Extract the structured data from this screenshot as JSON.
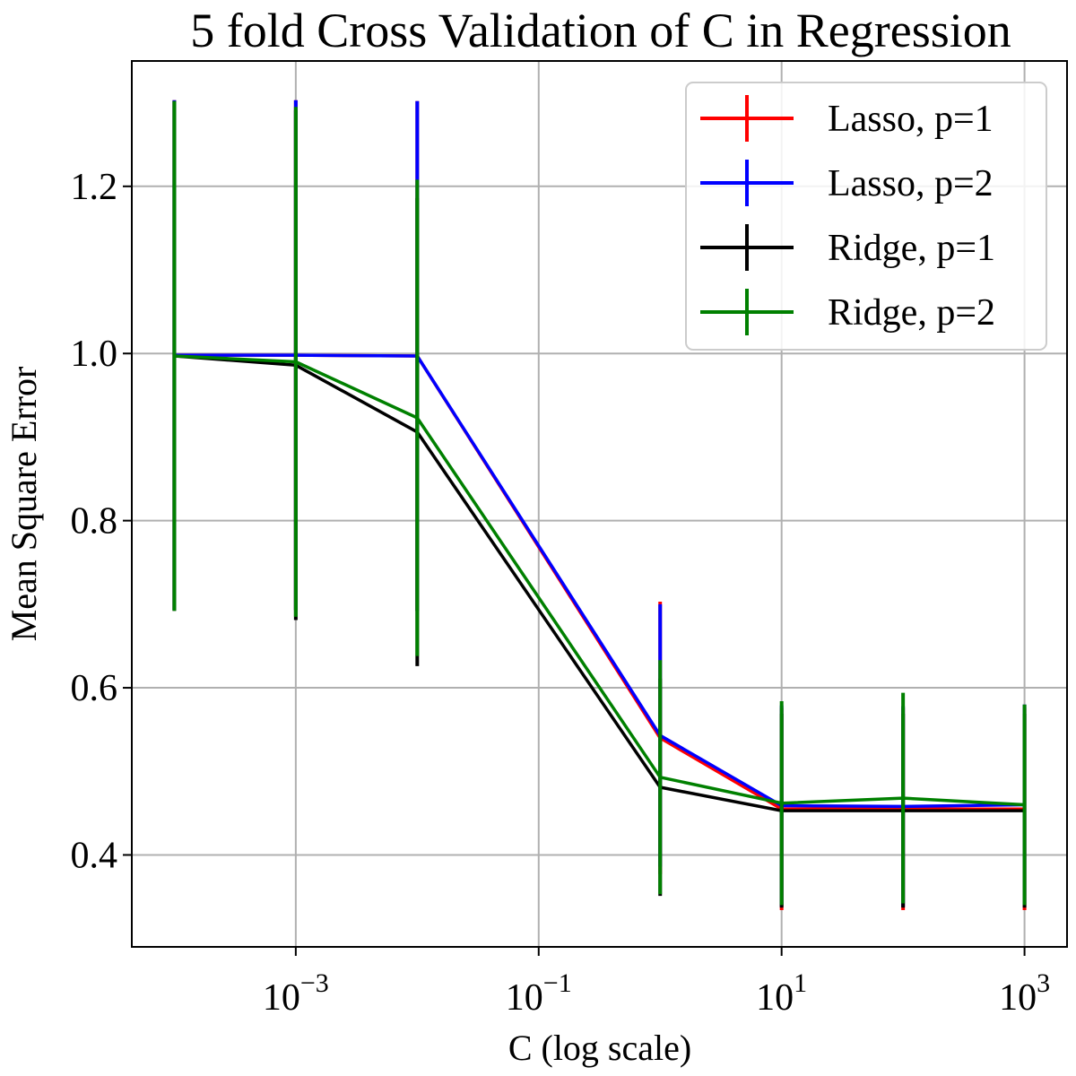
{
  "chart_data": {
    "type": "line",
    "title": "5 fold Cross Validation of C in Regression",
    "xlabel": "C (log scale)",
    "ylabel": "Mean Square Error",
    "x_scale": "log",
    "x": [
      0.0001,
      0.001,
      0.01,
      1,
      10,
      100,
      1000
    ],
    "x_ticks": [
      {
        "value": 0.001,
        "base": "10",
        "exp": "−3"
      },
      {
        "value": 0.1,
        "base": "10",
        "exp": "−1"
      },
      {
        "value": 10,
        "base": "10",
        "exp": "1"
      },
      {
        "value": 1000,
        "base": "10",
        "exp": "3"
      }
    ],
    "y_ticks": [
      {
        "value": 0.4,
        "label": "0.4"
      },
      {
        "value": 0.6,
        "label": "0.6"
      },
      {
        "value": 0.8,
        "label": "0.8"
      },
      {
        "value": 1.0,
        "label": "1.0"
      },
      {
        "value": 1.2,
        "label": "1.2"
      }
    ],
    "xlim_log10": [
      -4.35,
      3.35
    ],
    "ylim": [
      0.29,
      1.35
    ],
    "grid": true,
    "legend_position": "top-right",
    "series": [
      {
        "name": "Lasso, p=1",
        "color": "#ff0000",
        "values": [
          0.998,
          0.998,
          0.997,
          0.54,
          0.455,
          0.455,
          0.455
        ],
        "errors": [
          0.305,
          0.305,
          0.305,
          0.163,
          0.121,
          0.121,
          0.121
        ]
      },
      {
        "name": "Lasso, p=2",
        "color": "#0000ff",
        "values": [
          0.998,
          0.998,
          0.997,
          0.543,
          0.459,
          0.458,
          0.46
        ],
        "errors": [
          0.305,
          0.305,
          0.305,
          0.157,
          0.12,
          0.12,
          0.12
        ]
      },
      {
        "name": "Ridge, p=1",
        "color": "#000000",
        "values": [
          0.997,
          0.986,
          0.906,
          0.481,
          0.453,
          0.453,
          0.453
        ],
        "errors": [
          0.305,
          0.305,
          0.28,
          0.13,
          0.116,
          0.116,
          0.116
        ]
      },
      {
        "name": "Ridge, p=2",
        "color": "#008000",
        "values": [
          0.997,
          0.99,
          0.923,
          0.493,
          0.462,
          0.468,
          0.46
        ],
        "errors": [
          0.305,
          0.305,
          0.285,
          0.14,
          0.122,
          0.126,
          0.12
        ]
      }
    ]
  }
}
